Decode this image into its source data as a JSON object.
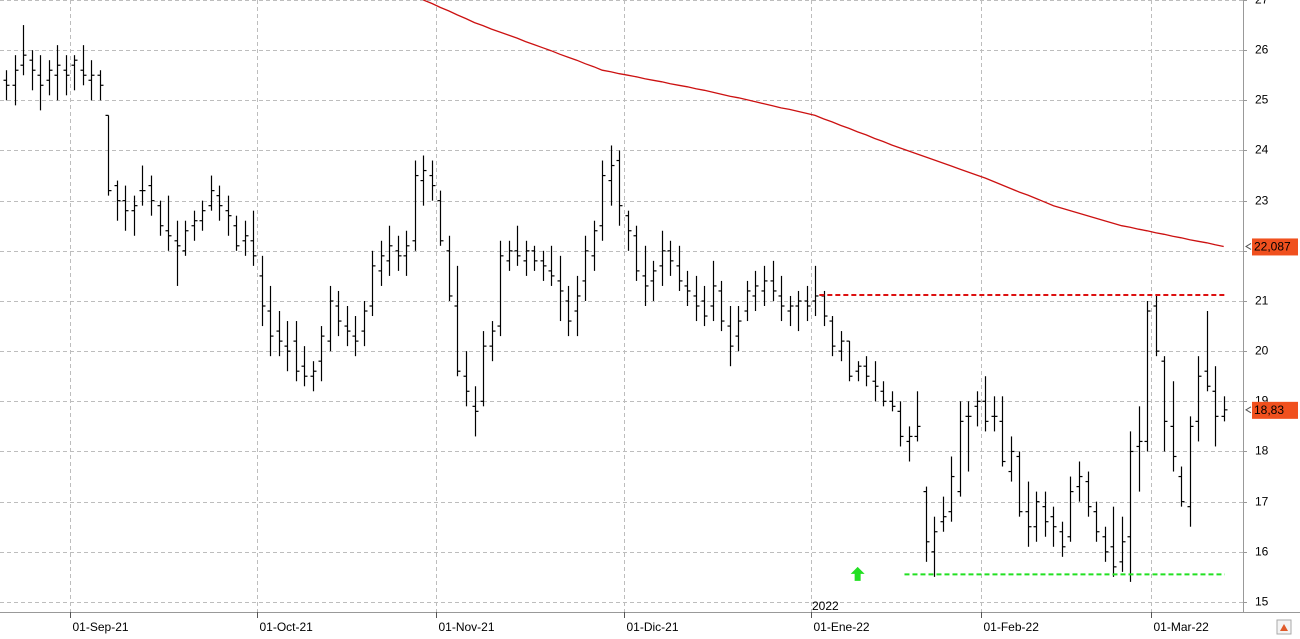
{
  "chart_data": {
    "type": "ohlc",
    "ylim": [
      14.8,
      27.0
    ],
    "yticks": [
      15,
      16,
      17,
      18,
      19,
      20,
      21,
      22,
      23,
      24,
      25,
      26,
      27
    ],
    "grid": true,
    "categories": [
      null,
      null,
      null,
      null,
      null,
      null,
      null,
      null,
      "01-Sep-21",
      null,
      null,
      null,
      null,
      null,
      null,
      null,
      null,
      null,
      null,
      null,
      null,
      null,
      null,
      null,
      null,
      null,
      null,
      null,
      null,
      null,
      "01-Oct-21",
      null,
      null,
      null,
      null,
      null,
      null,
      null,
      null,
      null,
      null,
      null,
      null,
      null,
      null,
      null,
      null,
      null,
      null,
      null,
      null,
      "01-Nov-21",
      null,
      null,
      null,
      null,
      null,
      null,
      null,
      null,
      null,
      null,
      null,
      null,
      null,
      null,
      null,
      null,
      null,
      null,
      null,
      null,
      null,
      "01-Dic-21",
      null,
      null,
      null,
      null,
      null,
      null,
      null,
      null,
      null,
      null,
      null,
      null,
      null,
      null,
      null,
      null,
      null,
      null,
      null,
      null,
      null,
      "01-Ene-22",
      null,
      null,
      null,
      null,
      null,
      null,
      null,
      null,
      null,
      null,
      null,
      null,
      null,
      null,
      null,
      null,
      null,
      null,
      null,
      "01-Feb-22",
      null,
      null,
      null,
      null,
      null,
      null,
      null,
      null,
      null,
      null,
      null,
      null,
      null,
      null,
      null,
      null,
      null,
      null,
      null,
      "01-Mar-22",
      null,
      null,
      null,
      null,
      null,
      null,
      null,
      null
    ],
    "year_label": {
      "text": "2022",
      "index": 95
    },
    "ohlc": {
      "color": "#000000",
      "last_label": "18,83",
      "label_color": "#f0501e",
      "open": [
        25.4,
        25.3,
        25.7,
        25.8,
        25.5,
        25.4,
        25.5,
        25.6,
        25.7,
        25.6,
        25.4,
        25.5,
        24.7,
        23.3,
        23.0,
        22.8,
        23.2,
        23.3,
        22.9,
        22.4,
        22.2,
        22.0,
        22.5,
        22.6,
        22.9,
        23.1,
        22.8,
        22.5,
        22.2,
        22.2,
        21.5,
        20.8,
        20.4,
        20.1,
        20.2,
        19.7,
        19.5,
        19.8,
        20.2,
        20.9,
        20.5,
        20.3,
        20.4,
        20.9,
        21.6,
        21.8,
        22.0,
        21.9,
        22.2,
        23.4,
        23.5,
        23.0,
        22.0,
        20.9,
        19.5,
        18.9,
        19.0,
        20.1,
        20.5,
        21.8,
        22.0,
        21.8,
        22.0,
        21.8,
        21.6,
        21.4,
        21.0,
        20.8,
        21.4,
        21.9,
        22.5,
        23.4,
        23.8,
        22.7,
        22.3,
        21.5,
        21.4,
        21.7,
        22.0,
        21.7,
        21.3,
        21.1,
        21.0,
        20.9,
        21.2,
        20.5,
        20.3,
        20.8,
        21.1,
        21.2,
        21.4,
        21.1,
        20.8,
        20.9,
        21.0,
        21.0,
        21.1,
        20.6,
        20.0,
        20.2,
        19.6,
        19.7,
        19.4,
        19.2,
        19.0,
        18.8,
        18.2,
        18.3,
        17.2,
        16.0,
        16.6,
        16.8,
        17.2,
        18.7,
        18.9,
        19.0,
        18.7,
        18.6,
        17.6,
        17.9,
        16.8,
        16.5,
        16.9,
        16.7,
        16.4,
        16.3,
        17.3,
        17.4,
        16.8,
        16.3,
        16.1,
        15.8,
        16.3,
        18.1,
        18.2,
        20.9,
        19.8,
        18.5,
        17.5,
        16.9,
        18.6,
        19.6,
        19.2,
        18.7
      ],
      "high": [
        25.6,
        25.9,
        26.5,
        26.0,
        25.9,
        25.8,
        26.1,
        25.9,
        25.9,
        26.1,
        25.8,
        25.6,
        24.7,
        23.4,
        23.3,
        23.1,
        23.7,
        23.5,
        23.0,
        23.1,
        22.6,
        22.6,
        22.8,
        23.0,
        23.5,
        23.3,
        23.1,
        22.7,
        22.6,
        22.8,
        21.9,
        21.3,
        20.8,
        20.6,
        20.6,
        20.1,
        19.8,
        20.5,
        21.3,
        21.2,
        20.9,
        20.7,
        21.0,
        22.0,
        22.2,
        22.5,
        22.3,
        22.4,
        23.8,
        23.9,
        23.8,
        23.2,
        22.3,
        21.7,
        20.0,
        19.3,
        20.4,
        20.6,
        22.2,
        22.2,
        22.5,
        22.2,
        22.1,
        22.0,
        22.1,
        21.9,
        21.3,
        21.5,
        22.3,
        22.6,
        23.8,
        24.1,
        24.0,
        22.8,
        22.5,
        22.1,
        21.8,
        22.4,
        22.2,
        22.1,
        21.6,
        21.5,
        21.3,
        21.8,
        21.4,
        20.9,
        20.9,
        21.4,
        21.6,
        21.7,
        21.8,
        21.5,
        21.1,
        21.2,
        21.3,
        21.7,
        21.2,
        20.7,
        20.4,
        20.2,
        19.8,
        19.9,
        19.8,
        19.4,
        19.2,
        19.0,
        18.5,
        19.2,
        17.3,
        16.7,
        17.1,
        17.9,
        19.0,
        19.0,
        19.2,
        19.5,
        19.1,
        19.1,
        18.3,
        18.0,
        17.4,
        17.2,
        17.2,
        16.9,
        16.6,
        17.5,
        17.8,
        17.6,
        17.0,
        16.5,
        16.9,
        16.7,
        18.4,
        18.9,
        21.0,
        21.1,
        19.9,
        19.4,
        17.7,
        18.7,
        19.9,
        20.8,
        19.7,
        19.1
      ],
      "low": [
        25.0,
        24.9,
        25.5,
        25.2,
        24.8,
        25.1,
        25.0,
        25.1,
        25.2,
        25.3,
        25.0,
        25.0,
        23.1,
        22.6,
        22.4,
        22.3,
        22.9,
        22.7,
        22.3,
        22.0,
        21.3,
        21.9,
        22.2,
        22.4,
        22.8,
        22.6,
        22.3,
        22.0,
        21.9,
        21.7,
        20.5,
        19.9,
        19.9,
        19.6,
        19.4,
        19.3,
        19.2,
        19.4,
        20.0,
        20.3,
        20.1,
        19.9,
        20.1,
        20.7,
        21.3,
        21.5,
        21.6,
        21.5,
        22.0,
        22.9,
        23.0,
        22.1,
        21.0,
        19.5,
        18.9,
        18.3,
        18.9,
        19.8,
        20.3,
        21.6,
        21.7,
        21.5,
        21.6,
        21.4,
        21.3,
        20.6,
        20.3,
        20.3,
        21.0,
        21.6,
        22.2,
        22.9,
        22.5,
        22.0,
        21.4,
        20.9,
        21.0,
        21.3,
        21.5,
        21.2,
        20.9,
        20.6,
        20.5,
        20.6,
        20.4,
        19.7,
        20.0,
        20.6,
        20.8,
        20.9,
        21.0,
        20.6,
        20.5,
        20.4,
        20.6,
        20.7,
        20.5,
        19.9,
        19.8,
        19.4,
        19.4,
        19.3,
        19.0,
        18.9,
        18.8,
        18.1,
        17.8,
        18.2,
        15.8,
        15.5,
        16.4,
        16.6,
        17.1,
        17.6,
        18.5,
        18.4,
        18.4,
        17.7,
        17.4,
        16.7,
        16.1,
        16.2,
        16.3,
        16.1,
        15.9,
        16.2,
        17.0,
        16.7,
        16.2,
        15.8,
        15.5,
        15.6,
        15.4,
        17.2,
        18.0,
        19.9,
        18.0,
        17.6,
        16.9,
        16.5,
        18.2,
        19.2,
        18.1,
        18.6
      ],
      "close": [
        25.3,
        25.6,
        25.9,
        25.6,
        25.3,
        25.6,
        25.7,
        25.5,
        25.8,
        25.5,
        25.5,
        25.3,
        23.2,
        23.0,
        22.8,
        22.9,
        23.2,
        23.0,
        22.5,
        22.3,
        22.1,
        22.4,
        22.6,
        22.8,
        23.2,
        22.9,
        22.7,
        22.1,
        22.3,
        21.9,
        20.9,
        20.3,
        20.2,
        20.0,
        19.6,
        19.5,
        19.6,
        20.3,
        21.0,
        20.6,
        20.4,
        20.2,
        20.8,
        21.7,
        21.9,
        22.1,
        21.9,
        22.1,
        23.5,
        23.6,
        23.3,
        22.2,
        21.1,
        19.6,
        19.2,
        18.8,
        20.1,
        20.4,
        21.9,
        22.0,
        21.9,
        22.0,
        21.8,
        21.7,
        21.5,
        21.2,
        20.6,
        21.1,
        22.0,
        22.4,
        23.5,
        23.7,
        22.9,
        22.4,
        21.6,
        21.3,
        21.6,
        22.0,
        21.8,
        21.4,
        21.2,
        20.9,
        20.7,
        21.3,
        20.6,
        20.1,
        20.6,
        21.2,
        21.3,
        21.4,
        21.2,
        20.9,
        20.9,
        21.0,
        20.9,
        21.1,
        20.7,
        20.1,
        20.2,
        19.5,
        19.7,
        19.5,
        19.3,
        19.0,
        18.9,
        18.3,
        18.3,
        18.5,
        16.2,
        16.4,
        16.7,
        17.5,
        18.6,
        18.7,
        19.0,
        18.6,
        18.7,
        17.8,
        18.0,
        16.8,
        16.5,
        17.0,
        16.6,
        16.5,
        16.1,
        17.2,
        17.5,
        16.9,
        16.4,
        16.0,
        15.7,
        16.2,
        18.0,
        18.2,
        20.8,
        20.0,
        18.6,
        17.9,
        17.0,
        18.5,
        19.5,
        19.3,
        18.7,
        18.83
      ]
    },
    "moving_average": {
      "color": "#cc1111",
      "last_label": "22,087",
      "label_color": "#f0501e",
      "values": [
        null,
        null,
        null,
        null,
        null,
        null,
        null,
        null,
        null,
        null,
        null,
        null,
        null,
        null,
        null,
        null,
        null,
        null,
        null,
        null,
        null,
        null,
        null,
        null,
        null,
        null,
        null,
        null,
        null,
        null,
        null,
        null,
        null,
        null,
        null,
        null,
        null,
        null,
        null,
        null,
        null,
        null,
        null,
        null,
        null,
        null,
        null,
        null,
        null,
        27.0,
        26.93,
        26.85,
        26.78,
        26.7,
        26.63,
        26.55,
        26.49,
        26.42,
        26.36,
        26.3,
        26.24,
        26.17,
        26.11,
        26.05,
        25.99,
        25.92,
        25.86,
        25.8,
        25.73,
        25.67,
        25.6,
        25.57,
        25.53,
        25.5,
        25.47,
        25.43,
        25.4,
        25.37,
        25.33,
        25.3,
        25.27,
        25.23,
        25.2,
        25.16,
        25.12,
        25.08,
        25.05,
        25.01,
        24.97,
        24.93,
        24.89,
        24.85,
        24.82,
        24.78,
        24.74,
        24.7,
        24.63,
        24.57,
        24.5,
        24.44,
        24.37,
        24.31,
        24.24,
        24.18,
        24.11,
        24.05,
        23.99,
        23.93,
        23.87,
        23.81,
        23.75,
        23.69,
        23.63,
        23.57,
        23.51,
        23.45,
        23.38,
        23.31,
        23.24,
        23.17,
        23.11,
        23.04,
        22.97,
        22.9,
        22.85,
        22.8,
        22.75,
        22.7,
        22.65,
        22.6,
        22.55,
        22.5,
        22.47,
        22.43,
        22.4,
        22.36,
        22.33,
        22.29,
        22.26,
        22.22,
        22.19,
        22.16,
        22.12,
        22.087
      ]
    },
    "levels": [
      {
        "value": 21.12,
        "start": 96,
        "color": "#dd1111"
      },
      {
        "value": 15.55,
        "start": 106,
        "color": "#22e022"
      }
    ],
    "signals": [
      {
        "index": 100,
        "value": 15.7,
        "color": "#22e022"
      }
    ]
  }
}
